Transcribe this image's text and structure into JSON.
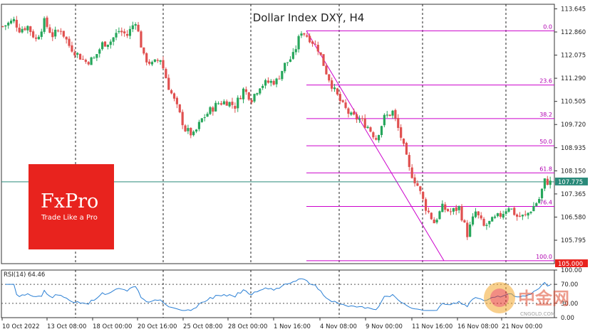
{
  "chart_data": {
    "type": "candlestick",
    "title": "Dollar Index DXY, H4",
    "timeframe": "H4",
    "ylim": [
      105.0,
      113.8
    ],
    "y_ticks": [
      "113.645",
      "112.860",
      "112.075",
      "111.290",
      "110.505",
      "109.720",
      "108.935",
      "108.150",
      "107.365",
      "106.580",
      "105.795",
      "105.000"
    ],
    "x_ticks": [
      "10 Oct 2022",
      "13 Oct 08:00",
      "18 Oct 00:00",
      "20 Oct 16:00",
      "25 Oct 08:00",
      "28 Oct 00:00",
      "1 Nov 16:00",
      "4 Nov 08:00",
      "9 Nov 00:00",
      "11 Nov 16:00",
      "16 Nov 08:00",
      "21 Nov 00:00"
    ],
    "current_price": "107.775",
    "min_price_label": "105.000",
    "colors": {
      "up": "#26a65b",
      "down": "#e0504f",
      "fib": "#cc00cc",
      "rsi": "#2a7fd4",
      "price_line": "#2a8a7a",
      "logo_bg": "#e8231e"
    },
    "close_anchors": [
      [
        0,
        113.05
      ],
      [
        8,
        113.25
      ],
      [
        12,
        112.95
      ],
      [
        18,
        113.05
      ],
      [
        24,
        112.6
      ],
      [
        30,
        113.2
      ],
      [
        36,
        112.75
      ],
      [
        42,
        112.95
      ],
      [
        48,
        112.4
      ],
      [
        54,
        112.1
      ],
      [
        60,
        111.85
      ],
      [
        66,
        111.95
      ],
      [
        72,
        112.45
      ],
      [
        78,
        112.55
      ],
      [
        84,
        112.9
      ],
      [
        90,
        112.75
      ],
      [
        96,
        113.25
      ],
      [
        102,
        112.0
      ],
      [
        108,
        111.75
      ],
      [
        114,
        111.95
      ],
      [
        120,
        111.0
      ],
      [
        126,
        110.3
      ],
      [
        132,
        109.55
      ],
      [
        138,
        109.35
      ],
      [
        144,
        109.9
      ],
      [
        150,
        110.2
      ],
      [
        156,
        110.45
      ],
      [
        162,
        110.5
      ],
      [
        168,
        110.35
      ],
      [
        174,
        110.9
      ],
      [
        180,
        110.6
      ],
      [
        186,
        111.05
      ],
      [
        192,
        111.15
      ],
      [
        198,
        111.2
      ],
      [
        204,
        111.75
      ],
      [
        210,
        112.05
      ],
      [
        216,
        112.9
      ],
      [
        222,
        112.65
      ],
      [
        228,
        112.3
      ],
      [
        234,
        111.5
      ],
      [
        240,
        110.85
      ],
      [
        246,
        110.35
      ],
      [
        252,
        110.0
      ],
      [
        258,
        109.9
      ],
      [
        264,
        109.65
      ],
      [
        270,
        109.25
      ],
      [
        276,
        109.95
      ],
      [
        282,
        110.15
      ],
      [
        288,
        109.3
      ],
      [
        294,
        108.2
      ],
      [
        300,
        107.65
      ],
      [
        306,
        106.9
      ],
      [
        312,
        106.4
      ],
      [
        318,
        106.9
      ],
      [
        324,
        106.75
      ],
      [
        330,
        106.9
      ],
      [
        336,
        106.0
      ],
      [
        342,
        106.75
      ],
      [
        348,
        106.25
      ],
      [
        354,
        106.45
      ],
      [
        360,
        106.65
      ],
      [
        366,
        106.95
      ],
      [
        372,
        106.6
      ],
      [
        378,
        106.6
      ],
      [
        384,
        106.95
      ],
      [
        388,
        107.2
      ],
      [
        392,
        107.8
      ],
      [
        396,
        107.75
      ]
    ],
    "fibonacci": {
      "high": 112.9,
      "low": 105.1,
      "levels": [
        {
          "label": "0.0",
          "ratio": 0.0
        },
        {
          "label": "23.6",
          "ratio": 0.236
        },
        {
          "label": "38.2",
          "ratio": 0.382
        },
        {
          "label": "50.0",
          "ratio": 0.5
        },
        {
          "label": "61.8",
          "ratio": 0.618
        },
        {
          "label": "76.4",
          "ratio": 0.764
        },
        {
          "label": "100.0",
          "ratio": 1.0
        }
      ]
    },
    "rsi": {
      "label": "RSI(14) 64.46",
      "period": 14,
      "value": 64.46,
      "ylim": [
        0,
        100
      ],
      "y_ticks": [
        "100.00",
        "70.00",
        "30.00",
        "0.00"
      ],
      "levels": [
        70,
        30
      ]
    }
  },
  "logo": {
    "name": "FxPro",
    "tagline": "Trade Like a Pro"
  },
  "watermark": {
    "text": "中金网",
    "sub": "CNGOLD.COM"
  }
}
